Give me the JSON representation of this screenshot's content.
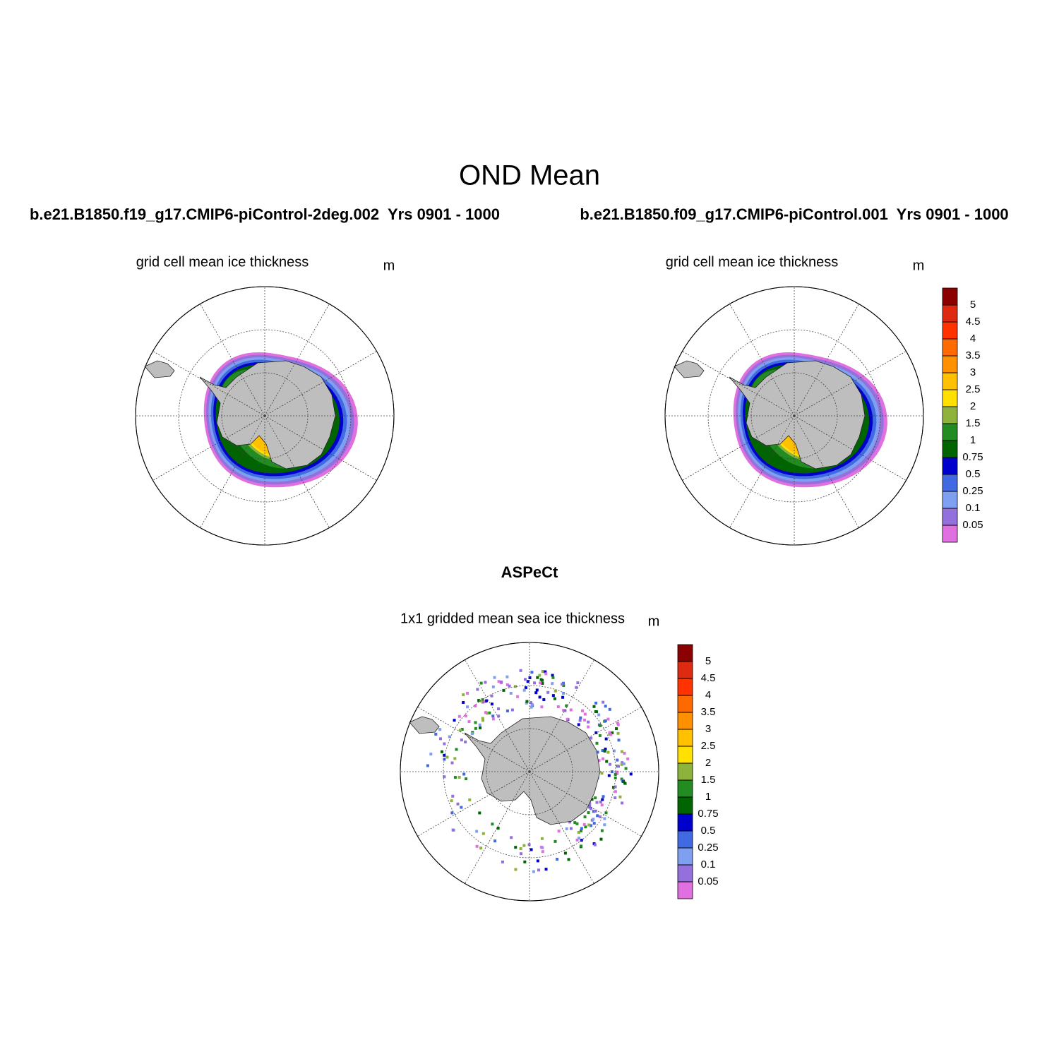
{
  "title": "OND Mean",
  "panels": [
    {
      "case": "b.e21.B1850.f19_g17.CMIP6-piControl-2deg.002  Yrs 0901 - 1000",
      "subtitle": "grid cell mean ice thickness",
      "units": "m"
    },
    {
      "case": "b.e21.B1850.f09_g17.CMIP6-piControl.001  Yrs 0901 - 1000",
      "subtitle": "grid cell mean ice thickness",
      "units": "m"
    },
    {
      "case": "ASPeCt",
      "subtitle": "1x1 gridded mean sea ice thickness",
      "units": "m"
    }
  ],
  "colorbar": {
    "levels": [
      0.05,
      0.1,
      0.25,
      0.5,
      0.75,
      1,
      1.5,
      2,
      2.5,
      3,
      3.5,
      4,
      4.5,
      5
    ],
    "colors": [
      "#e070e0",
      "#9370db",
      "#7f9ff0",
      "#4169e1",
      "#0000cd",
      "#006400",
      "#228b22",
      "#8db33a",
      "#ffe000",
      "#ffc000",
      "#ff9000",
      "#ff6a00",
      "#ff3300",
      "#dd2a10",
      "#8b0000"
    ]
  }
}
